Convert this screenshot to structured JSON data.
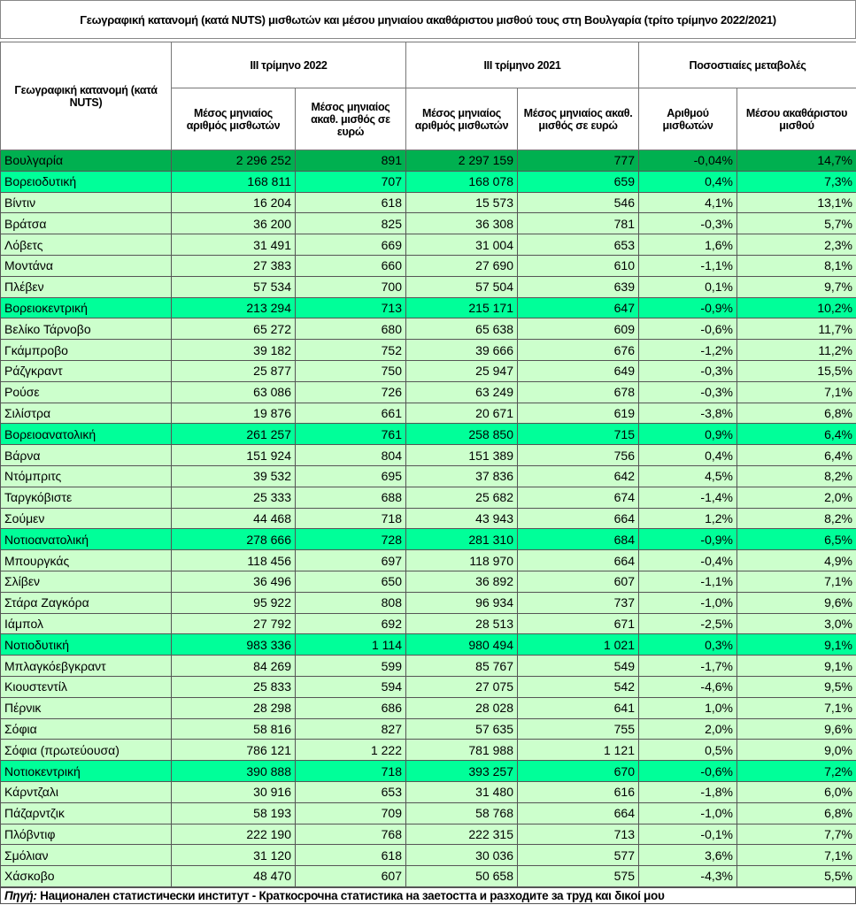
{
  "title": "Γεωγραφική κατανομή (κατά NUTS) μισθωτών και μέσου μηνιαίου ακαθάριστου μισθού τους στη Βουλγαρία (τρίτο τρίμηνο 2022/2021)",
  "headers": {
    "geo": "Γεωγραφική κατανομή (κατά NUTS)",
    "q2022": "ΙΙΙ τρίμηνο 2022",
    "q2021": "ΙΙΙ τρίμηνο 2021",
    "pct": "Ποσοστιαίες μεταβολές",
    "sub": [
      "Μέσος μηνιαίος αριθμός μισθωτών",
      "Μέσος μηνιαίος ακαθ. μισθός σε ευρώ",
      "Μέσος μηνιαίος αριθμός μισθωτών",
      "Μέσος μηνιαίος ακαθ. μισθός σε ευρώ",
      "Αριθμού μισθωτών",
      "Μέσου ακαθάριστου μισθού"
    ]
  },
  "colors": {
    "total": "#00b050",
    "region": "#00ff99",
    "district": "#ccffcc"
  },
  "rows": [
    {
      "type": "total",
      "c": [
        "Βουλγαρία",
        "2 296 252",
        "891",
        "2 297 159",
        "777",
        "-0,04%",
        "14,7%"
      ]
    },
    {
      "type": "region",
      "c": [
        "Βορειοδυτική",
        "168 811",
        "707",
        "168 078",
        "659",
        "0,4%",
        "7,3%"
      ]
    },
    {
      "type": "district",
      "c": [
        "Βίντιν",
        "16 204",
        "618",
        "15 573",
        "546",
        "4,1%",
        "13,1%"
      ]
    },
    {
      "type": "district",
      "c": [
        "Βράτσα",
        "36 200",
        "825",
        "36 308",
        "781",
        "-0,3%",
        "5,7%"
      ]
    },
    {
      "type": "district",
      "c": [
        "Λόβετς",
        "31 491",
        "669",
        "31 004",
        "653",
        "1,6%",
        "2,3%"
      ]
    },
    {
      "type": "district",
      "c": [
        "Μοντάνα",
        "27 383",
        "660",
        "27 690",
        "610",
        "-1,1%",
        "8,1%"
      ]
    },
    {
      "type": "district",
      "c": [
        "Πλέβεν",
        "57 534",
        "700",
        "57 504",
        "639",
        "0,1%",
        "9,7%"
      ]
    },
    {
      "type": "region",
      "c": [
        "Βορειοκεντρική",
        "213 294",
        "713",
        "215 171",
        "647",
        "-0,9%",
        "10,2%"
      ]
    },
    {
      "type": "district",
      "c": [
        "Βελίκο Τάρνοβο",
        "65 272",
        "680",
        "65 638",
        "609",
        "-0,6%",
        "11,7%"
      ]
    },
    {
      "type": "district",
      "c": [
        "Γκάμπροβο",
        "39 182",
        "752",
        "39 666",
        "676",
        "-1,2%",
        "11,2%"
      ]
    },
    {
      "type": "district",
      "c": [
        "Ράζγκραντ",
        "25 877",
        "750",
        "25 947",
        "649",
        "-0,3%",
        "15,5%"
      ]
    },
    {
      "type": "district",
      "c": [
        "Ρούσε",
        "63 086",
        "726",
        "63 249",
        "678",
        "-0,3%",
        "7,1%"
      ]
    },
    {
      "type": "district",
      "c": [
        "Σιλίστρα",
        "19 876",
        "661",
        "20 671",
        "619",
        "-3,8%",
        "6,8%"
      ]
    },
    {
      "type": "region",
      "c": [
        "Βορειοανατολική",
        "261 257",
        "761",
        "258 850",
        "715",
        "0,9%",
        "6,4%"
      ]
    },
    {
      "type": "district",
      "c": [
        "Βάρνα",
        "151 924",
        "804",
        "151 389",
        "756",
        "0,4%",
        "6,4%"
      ]
    },
    {
      "type": "district",
      "c": [
        "Ντόμπριτς",
        "39 532",
        "695",
        "37 836",
        "642",
        "4,5%",
        "8,2%"
      ]
    },
    {
      "type": "district",
      "c": [
        "Ταργκόβιστε",
        "25 333",
        "688",
        "25 682",
        "674",
        "-1,4%",
        "2,0%"
      ]
    },
    {
      "type": "district",
      "c": [
        "Σούμεν",
        "44 468",
        "718",
        "43 943",
        "664",
        "1,2%",
        "8,2%"
      ]
    },
    {
      "type": "region",
      "c": [
        "Νοτιοανατολική",
        "278 666",
        "728",
        "281 310",
        "684",
        "-0,9%",
        "6,5%"
      ]
    },
    {
      "type": "district",
      "c": [
        "Μπουργκάς",
        "118 456",
        "697",
        "118 970",
        "664",
        "-0,4%",
        "4,9%"
      ]
    },
    {
      "type": "district",
      "c": [
        "Σλίβεν",
        "36 496",
        "650",
        "36 892",
        "607",
        "-1,1%",
        "7,1%"
      ]
    },
    {
      "type": "district",
      "c": [
        "Στάρα Ζαγκόρα",
        "95 922",
        "808",
        "96 934",
        "737",
        "-1,0%",
        "9,6%"
      ]
    },
    {
      "type": "district",
      "c": [
        "Ιάμπολ",
        "27 792",
        "692",
        "28 513",
        "671",
        "-2,5%",
        "3,0%"
      ]
    },
    {
      "type": "region",
      "c": [
        "Νοτιοδυτική",
        "983 336",
        "1 114",
        "980 494",
        "1 021",
        "0,3%",
        "9,1%"
      ]
    },
    {
      "type": "district",
      "c": [
        "Μπλαγκόεβγκραντ",
        "84 269",
        "599",
        "85 767",
        "549",
        "-1,7%",
        "9,1%"
      ]
    },
    {
      "type": "district",
      "c": [
        "Κιουστεντίλ",
        "25 833",
        "594",
        "27 075",
        "542",
        "-4,6%",
        "9,5%"
      ]
    },
    {
      "type": "district",
      "c": [
        "Πέρνικ",
        "28 298",
        "686",
        "28 028",
        "641",
        "1,0%",
        "7,1%"
      ]
    },
    {
      "type": "district",
      "c": [
        "Σόφια",
        "58 816",
        "827",
        "57 635",
        "755",
        "2,0%",
        "9,6%"
      ]
    },
    {
      "type": "district",
      "c": [
        "Σόφια (πρωτεύουσα)",
        "786 121",
        "1 222",
        "781 988",
        "1 121",
        "0,5%",
        "9,0%"
      ]
    },
    {
      "type": "region",
      "c": [
        "Νοτιοκεντρική",
        "390 888",
        "718",
        "393 257",
        "670",
        "-0,6%",
        "7,2%"
      ]
    },
    {
      "type": "district",
      "c": [
        "Κάρντζαλι",
        "30 916",
        "653",
        "31 480",
        "616",
        "-1,8%",
        "6,0%"
      ]
    },
    {
      "type": "district",
      "c": [
        "Πάζαρντζικ",
        "58 193",
        "709",
        "58 768",
        "664",
        "-1,0%",
        "6,8%"
      ]
    },
    {
      "type": "district",
      "c": [
        "Πλόβντιφ",
        "222 190",
        "768",
        "222 315",
        "713",
        "-0,1%",
        "7,7%"
      ]
    },
    {
      "type": "district",
      "c": [
        "Σμόλιαν",
        "31 120",
        "618",
        "30 036",
        "577",
        "3,6%",
        "7,1%"
      ]
    },
    {
      "type": "district",
      "c": [
        "Χάσκοβο",
        "48 470",
        "607",
        "50 658",
        "575",
        "-4,3%",
        "5,5%"
      ]
    }
  ],
  "footer": {
    "label": "Πηγή:",
    "text": " Национален статистически институт - Краткосрочна статистика на заетостта и разходите за труд και δικοί μου"
  }
}
